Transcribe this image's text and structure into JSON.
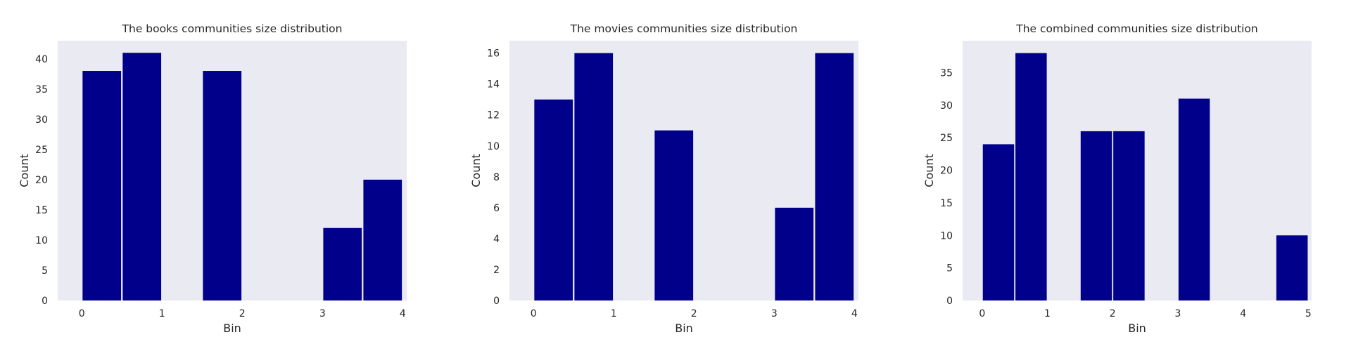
{
  "chart_data": [
    {
      "type": "bar",
      "title": "The books communities size distribution",
      "xlabel": "Bin",
      "ylabel": "Count",
      "bars": [
        {
          "x": 0.25,
          "value": 38
        },
        {
          "x": 0.75,
          "value": 41
        },
        {
          "x": 1.75,
          "value": 38
        },
        {
          "x": 3.25,
          "value": 12
        },
        {
          "x": 3.75,
          "value": 20
        }
      ],
      "bar_width": 0.48,
      "xticks": [
        0,
        1,
        2,
        3,
        4
      ],
      "yticks": [
        0,
        5,
        10,
        15,
        20,
        25,
        30,
        35,
        40
      ],
      "xlim": [
        -0.3,
        4.05
      ],
      "ylim": [
        0,
        43
      ],
      "grid": false
    },
    {
      "type": "bar",
      "title": "The movies communities size distribution",
      "xlabel": "Bin",
      "ylabel": "Count",
      "bars": [
        {
          "x": 0.25,
          "value": 13
        },
        {
          "x": 0.75,
          "value": 16
        },
        {
          "x": 1.75,
          "value": 11
        },
        {
          "x": 3.25,
          "value": 6
        },
        {
          "x": 3.75,
          "value": 16
        }
      ],
      "bar_width": 0.48,
      "xticks": [
        0,
        1,
        2,
        3,
        4
      ],
      "yticks": [
        0,
        2,
        4,
        6,
        8,
        10,
        12,
        14,
        16
      ],
      "xlim": [
        -0.3,
        4.05
      ],
      "ylim": [
        0,
        16.8
      ],
      "grid": false
    },
    {
      "type": "bar",
      "title": "The combined communities size distribution",
      "xlabel": "Bin",
      "ylabel": "Count",
      "bars": [
        {
          "x": 0.25,
          "value": 24
        },
        {
          "x": 0.75,
          "value": 38
        },
        {
          "x": 1.75,
          "value": 26
        },
        {
          "x": 2.25,
          "value": 26
        },
        {
          "x": 3.25,
          "value": 31
        },
        {
          "x": 4.75,
          "value": 10
        }
      ],
      "bar_width": 0.48,
      "xticks": [
        0,
        1,
        2,
        3,
        4,
        5
      ],
      "yticks": [
        0,
        5,
        10,
        15,
        20,
        25,
        30,
        35
      ],
      "xlim": [
        -0.3,
        5.05
      ],
      "ylim": [
        0,
        39.9
      ],
      "grid": false
    }
  ],
  "colors": {
    "bar": "#00008b",
    "plot_background": "#eaeaf2",
    "text": "#262626"
  }
}
